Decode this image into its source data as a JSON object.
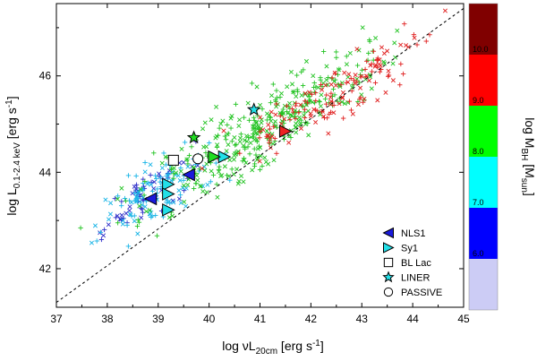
{
  "chart_data": {
    "type": "scatter",
    "xlabel": "log νL",
    "xlabel_sub": "20cm",
    "xlabel_unit": " [erg s",
    "xlabel_sup": "-1",
    "xlabel_end": "]",
    "ylabel": "log L",
    "ylabel_sub": "0.1-2.4 keV",
    "ylabel_unit": " [erg s",
    "ylabel_sup": "-1",
    "ylabel_end": "]",
    "xlim": [
      37,
      45
    ],
    "ylim": [
      41.2,
      47.5
    ],
    "x_ticks": [
      "37",
      "38",
      "39",
      "40",
      "41",
      "42",
      "43",
      "44",
      "45"
    ],
    "y_ticks": [
      "42",
      "44",
      "46"
    ],
    "fit_line": {
      "x": [
        37,
        45
      ],
      "y": [
        41.3,
        47.4
      ],
      "style": "dashed"
    },
    "colorbar": {
      "label": "log M",
      "label_sub": "BH",
      "label_unit": " [M",
      "label_unit_sub": "sun",
      "label_end": "]",
      "bins": [
        {
          "from": 5.0,
          "to": 6.0,
          "color": "#ccccf5"
        },
        {
          "from": 6.0,
          "to": 7.0,
          "color": "#0000ff"
        },
        {
          "from": 7.0,
          "to": 8.0,
          "color": "#00ffff"
        },
        {
          "from": 8.0,
          "to": 9.0,
          "color": "#00ff00"
        },
        {
          "from": 9.0,
          "to": 10.0,
          "color": "#ff0000"
        },
        {
          "from": 10.0,
          "to": 11.0,
          "color": "#800000"
        }
      ],
      "tick_labels": [
        "6.0",
        "7.0",
        "8.0",
        "9.0",
        "10.0"
      ]
    },
    "background_clouds": [
      {
        "name": "blue",
        "color": "#2e2ec8",
        "cx": 38.7,
        "cy": 43.5,
        "sx": 0.45,
        "sy": 0.45,
        "n": 60,
        "seed": 11
      },
      {
        "name": "cyan",
        "color": "#18b4e6",
        "cx": 39.0,
        "cy": 43.6,
        "sx": 0.55,
        "sy": 0.55,
        "n": 120,
        "seed": 23
      },
      {
        "name": "green",
        "color": "#22c322",
        "cx": 41.2,
        "cy": 45.0,
        "sx": 1.2,
        "sy": 0.7,
        "n": 380,
        "seed": 37
      },
      {
        "name": "red",
        "color": "#e02020",
        "cx": 42.4,
        "cy": 45.6,
        "sx": 1.0,
        "sy": 0.55,
        "n": 150,
        "seed": 53
      }
    ],
    "highlighted_points": [
      {
        "class": "NLS1",
        "x": 38.85,
        "y": 43.45,
        "fill": "#1a1adc",
        "dir": "left"
      },
      {
        "class": "NLS1",
        "x": 39.6,
        "y": 43.95,
        "fill": "#1a1adc",
        "dir": "left"
      },
      {
        "class": "Sy1",
        "x": 39.2,
        "y": 43.75,
        "fill": "#22e0e8",
        "dir": "right"
      },
      {
        "class": "Sy1",
        "x": 39.2,
        "y": 43.55,
        "fill": "#22e0e8",
        "dir": "right"
      },
      {
        "class": "Sy1",
        "x": 39.2,
        "y": 43.22,
        "fill": "#22e0e8",
        "dir": "right"
      },
      {
        "class": "Sy1",
        "x": 40.3,
        "y": 44.32,
        "fill": "#22e0e8",
        "dir": "right"
      },
      {
        "class": "Sy1",
        "x": 40.1,
        "y": 44.32,
        "fill": "#22dd22",
        "dir": "right"
      },
      {
        "class": "Sy1",
        "x": 41.5,
        "y": 44.85,
        "fill": "#ee2222",
        "dir": "right"
      },
      {
        "class": "BL Lac",
        "x": 39.3,
        "y": 44.25,
        "fill": "#ffffff",
        "shape": "square"
      },
      {
        "class": "LINER",
        "x": 39.7,
        "y": 44.72,
        "fill": "#22dd22",
        "shape": "star"
      },
      {
        "class": "LINER",
        "x": 40.88,
        "y": 45.3,
        "fill": "#22e0e8",
        "shape": "star"
      },
      {
        "class": "PASSIVE",
        "x": 39.78,
        "y": 44.28,
        "fill": "#ffffff",
        "shape": "circle"
      }
    ],
    "legend": [
      {
        "label": "NLS1",
        "symbol": "left-triangle",
        "fill": "#1a1adc"
      },
      {
        "label": "Sy1",
        "symbol": "right-triangle",
        "fill": "#22e0e8"
      },
      {
        "label": "BL Lac",
        "symbol": "square",
        "fill": "#ffffff"
      },
      {
        "label": "LINER",
        "symbol": "star",
        "fill": "#22e0e8"
      },
      {
        "label": "PASSIVE",
        "symbol": "circle",
        "fill": "#ffffff"
      }
    ],
    "legend_position": "bottom-right"
  }
}
